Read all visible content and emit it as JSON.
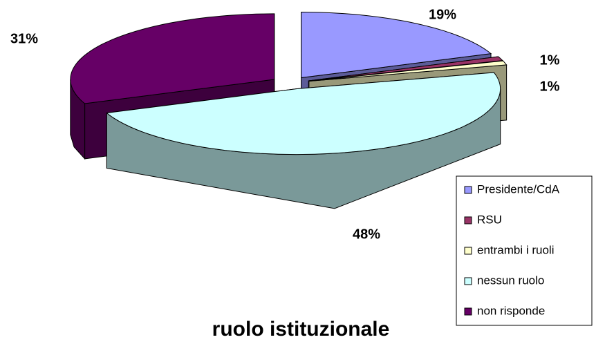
{
  "chart_data": {
    "type": "pie3d",
    "title": "ruolo istituzionale",
    "categories": [
      "Presidente/CdA",
      "RSU",
      "entrambi i ruoli",
      "nessun ruolo",
      "non risponde"
    ],
    "values": [
      19,
      1,
      1,
      48,
      31
    ],
    "value_labels": [
      "19%",
      "1%",
      "1%",
      "48%",
      "31%"
    ],
    "colors": [
      "#9999ff",
      "#993366",
      "#ffffcc",
      "#ccffff",
      "#660066"
    ],
    "legend": "right"
  }
}
